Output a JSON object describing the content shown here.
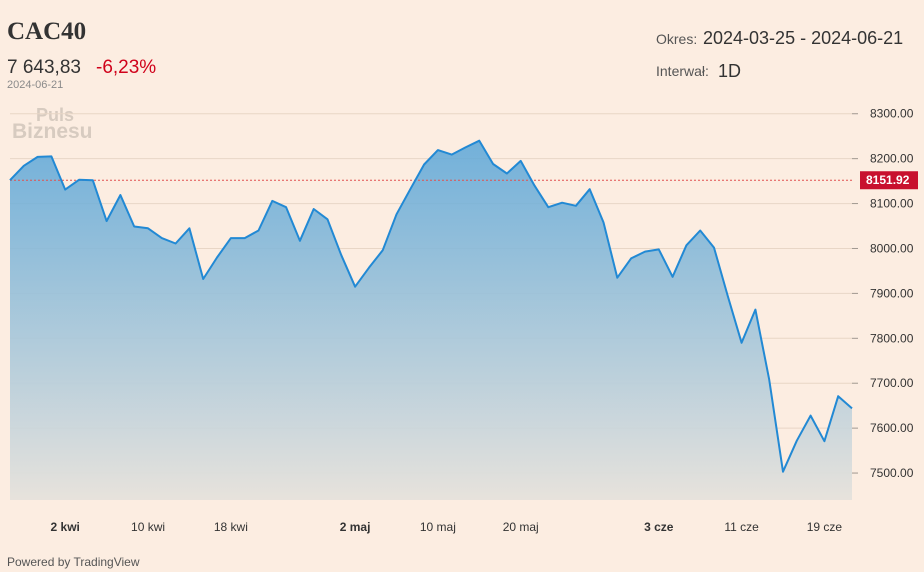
{
  "header": {
    "title": "CAC40",
    "price": "7 643,83",
    "change": "-6,23%",
    "date": "2024-06-21",
    "period_label": "Okres:",
    "period_value": "2024-03-25 - 2024-06-21",
    "interval_label": "Interwał:",
    "interval_value": "1D"
  },
  "logo": {
    "line1": "Puls",
    "line2": "Biznesu"
  },
  "footer": {
    "text": "Powered by TradingView"
  },
  "colors": {
    "background": "#fcede1",
    "line": "#2289d4",
    "negative": "#d0021b",
    "reference_label_bg": "#c8102e"
  },
  "chart_data": {
    "type": "area",
    "x": [
      "2024-03-25",
      "2024-03-26",
      "2024-03-27",
      "2024-03-28",
      "2024-04-02",
      "2024-04-03",
      "2024-04-04",
      "2024-04-05",
      "2024-04-08",
      "2024-04-09",
      "2024-04-10",
      "2024-04-11",
      "2024-04-12",
      "2024-04-15",
      "2024-04-16",
      "2024-04-17",
      "2024-04-18",
      "2024-04-19",
      "2024-04-22",
      "2024-04-23",
      "2024-04-24",
      "2024-04-25",
      "2024-04-26",
      "2024-04-29",
      "2024-04-30",
      "2024-05-02",
      "2024-05-03",
      "2024-05-06",
      "2024-05-07",
      "2024-05-08",
      "2024-05-09",
      "2024-05-10",
      "2024-05-13",
      "2024-05-14",
      "2024-05-15",
      "2024-05-16",
      "2024-05-17",
      "2024-05-20",
      "2024-05-21",
      "2024-05-22",
      "2024-05-23",
      "2024-05-24",
      "2024-05-27",
      "2024-05-28",
      "2024-05-29",
      "2024-05-30",
      "2024-05-31",
      "2024-06-03",
      "2024-06-04",
      "2024-06-05",
      "2024-06-06",
      "2024-06-07",
      "2024-06-10",
      "2024-06-11",
      "2024-06-12",
      "2024-06-13",
      "2024-06-14",
      "2024-06-17",
      "2024-06-18",
      "2024-06-19",
      "2024-06-20",
      "2024-06-21"
    ],
    "values": [
      8151.92,
      8184,
      8204,
      8205,
      8131,
      8153,
      8152,
      8061,
      8119,
      8049,
      8045,
      8023,
      8011,
      8045,
      7932,
      7980,
      8023,
      8023,
      8040,
      8106,
      8092,
      8017,
      8088,
      8065,
      7985,
      7915,
      7957,
      7996,
      8076,
      8132,
      8187,
      8219,
      8209,
      8225,
      8240,
      8188,
      8167,
      8195,
      8140,
      8092,
      8102,
      8095,
      8132,
      8058,
      7935,
      7978,
      7993,
      7998,
      7937,
      8007,
      8040,
      8002,
      7894,
      7790,
      7864,
      7708,
      7503,
      7572,
      7628,
      7571,
      7671,
      7644
    ],
    "x_ticks": [
      {
        "label": "2 kwi",
        "index": 4,
        "bold": true
      },
      {
        "label": "10 kwi",
        "index": 10,
        "bold": false
      },
      {
        "label": "18 kwi",
        "index": 16,
        "bold": false
      },
      {
        "label": "2 maj",
        "index": 25,
        "bold": true
      },
      {
        "label": "10 maj",
        "index": 31,
        "bold": false
      },
      {
        "label": "20 maj",
        "index": 37,
        "bold": false
      },
      {
        "label": "3 cze",
        "index": 47,
        "bold": true
      },
      {
        "label": "11 cze",
        "index": 53,
        "bold": false
      },
      {
        "label": "19 cze",
        "index": 59,
        "bold": false
      }
    ],
    "y_ticks": [
      "8300.00",
      "8200.00",
      "8100.00",
      "8000.00",
      "7900.00",
      "7800.00",
      "7700.00",
      "7600.00",
      "7500.00"
    ],
    "ylim": [
      7440,
      8315
    ],
    "reference_line": {
      "value": 8151.92,
      "label": "8151.92"
    },
    "grid": true,
    "axis_position": "right"
  }
}
